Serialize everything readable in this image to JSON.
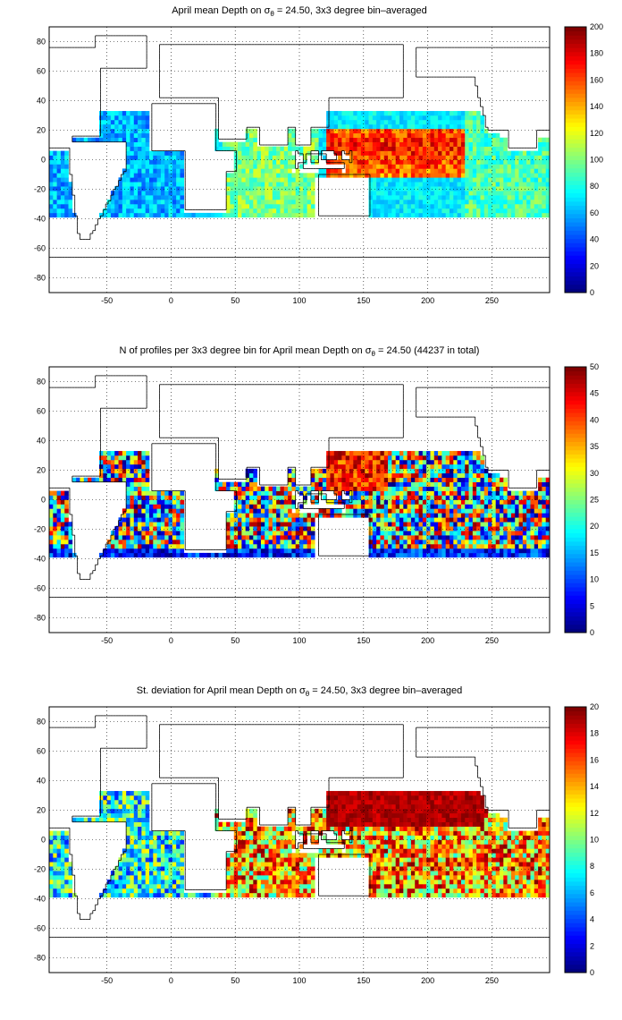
{
  "chart_data": [
    {
      "type": "heatmap",
      "title_prefix": "April mean Depth on ",
      "title_symbol": "σ",
      "title_subscript": "θ",
      "title_suffix": " = 24.50, 3x3 degree bin–averaged",
      "xticks": [
        "-50",
        "0",
        "50",
        "100",
        "150",
        "200",
        "250"
      ],
      "yticks": [
        "80",
        "60",
        "40",
        "20",
        "0",
        "-20",
        "-40",
        "-60",
        "-80"
      ],
      "xlim": [
        -95,
        295
      ],
      "ylim": [
        -90,
        90
      ],
      "grid": true,
      "colorbar": {
        "min": 0,
        "max": 200,
        "ticks": [
          "200",
          "180",
          "160",
          "140",
          "120",
          "100",
          "80",
          "60",
          "40",
          "20",
          "0"
        ]
      },
      "colormap": "jet",
      "description_values": "Mean depth (m) in 3x3 degree bins; highest (~180-200) in the western tropical Pacific near 120-200E, 0-20N; values ~60-120 over Indian Ocean; ~20-60 in the subtropical Atlantic"
    },
    {
      "type": "heatmap",
      "title_prefix": "N of profiles per 3x3 degree bin for April mean Depth on ",
      "title_symbol": "σ",
      "title_subscript": "θ",
      "title_suffix": " = 24.50 (44237 in total)",
      "xticks": [
        "-50",
        "0",
        "50",
        "100",
        "150",
        "200",
        "250"
      ],
      "yticks": [
        "80",
        "60",
        "40",
        "20",
        "0",
        "-20",
        "-40",
        "-60",
        "-80"
      ],
      "xlim": [
        -95,
        295
      ],
      "ylim": [
        -90,
        90
      ],
      "grid": true,
      "colorbar": {
        "min": 0,
        "max": 50,
        "ticks": [
          "50",
          "45",
          "40",
          "35",
          "30",
          "25",
          "20",
          "15",
          "10",
          "5",
          "0"
        ]
      },
      "colormap": "jet"
    },
    {
      "type": "heatmap",
      "title_prefix": "St. deviation for April mean Depth on ",
      "title_symbol": "σ",
      "title_subscript": "θ",
      "title_suffix": " = 24.50, 3x3 degree bin–averaged",
      "xticks": [
        "-50",
        "0",
        "50",
        "100",
        "150",
        "200",
        "250"
      ],
      "yticks": [
        "80",
        "60",
        "40",
        "20",
        "0",
        "-20",
        "-40",
        "-60",
        "-80"
      ],
      "xlim": [
        -95,
        295
      ],
      "ylim": [
        -90,
        90
      ],
      "grid": true,
      "colorbar": {
        "min": 0,
        "max": 20,
        "ticks": [
          "20",
          "18",
          "16",
          "14",
          "12",
          "10",
          "8",
          "6",
          "4",
          "2",
          "0"
        ]
      },
      "colormap": "jet"
    }
  ]
}
